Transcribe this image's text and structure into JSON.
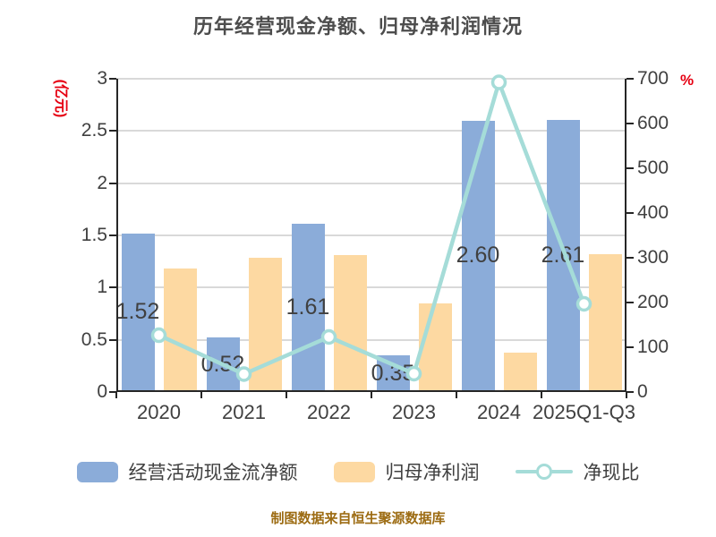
{
  "chart_data": {
    "type": "bar",
    "title": "历年经营现金净额、归母净利润情况",
    "categories": [
      "2020",
      "2021",
      "2022",
      "2023",
      "2024",
      "2025Q1-Q3"
    ],
    "series": [
      {
        "name": "经营活动现金流净额",
        "kind": "bar",
        "axis": "left",
        "color": "#8bacd9",
        "values": [
          1.52,
          0.52,
          1.61,
          0.35,
          2.6,
          2.61
        ],
        "labels": [
          "1.52",
          "0.52",
          "1.61",
          "0.35",
          "2.60",
          "2.61"
        ]
      },
      {
        "name": "归母净利润",
        "kind": "bar",
        "axis": "left",
        "color": "#fdd9a2",
        "values": [
          1.18,
          1.29,
          1.31,
          0.85,
          0.38,
          1.32
        ]
      },
      {
        "name": "净现比",
        "kind": "line",
        "axis": "right",
        "color": "#a5dcd8",
        "values": [
          127,
          40,
          123,
          41,
          692,
          197
        ]
      }
    ],
    "left_axis": {
      "unit": "(亿元)",
      "min": 0,
      "max": 3,
      "tick_labels": [
        "3",
        "2.5",
        "2",
        "1.5",
        "1",
        "0.5",
        "0"
      ]
    },
    "right_axis": {
      "unit": "%",
      "min": 0,
      "max": 700,
      "tick_labels": [
        "700",
        "600",
        "500",
        "400",
        "300",
        "200",
        "100",
        "0"
      ]
    },
    "grid": true,
    "legend_position": "bottom"
  },
  "footer": {
    "note": "制图数据来自恒生聚源数据库"
  },
  "colors": {
    "bar_blue": "#8bacd9",
    "bar_orange": "#fdd9a2",
    "line_teal": "#a5dcd8",
    "axis_text": "#404040",
    "unit_red": "#e60012",
    "footer_gold": "#9c6b12",
    "grid": "#d9d9d9",
    "axis_line": "#262626",
    "background": "#ffffff"
  }
}
